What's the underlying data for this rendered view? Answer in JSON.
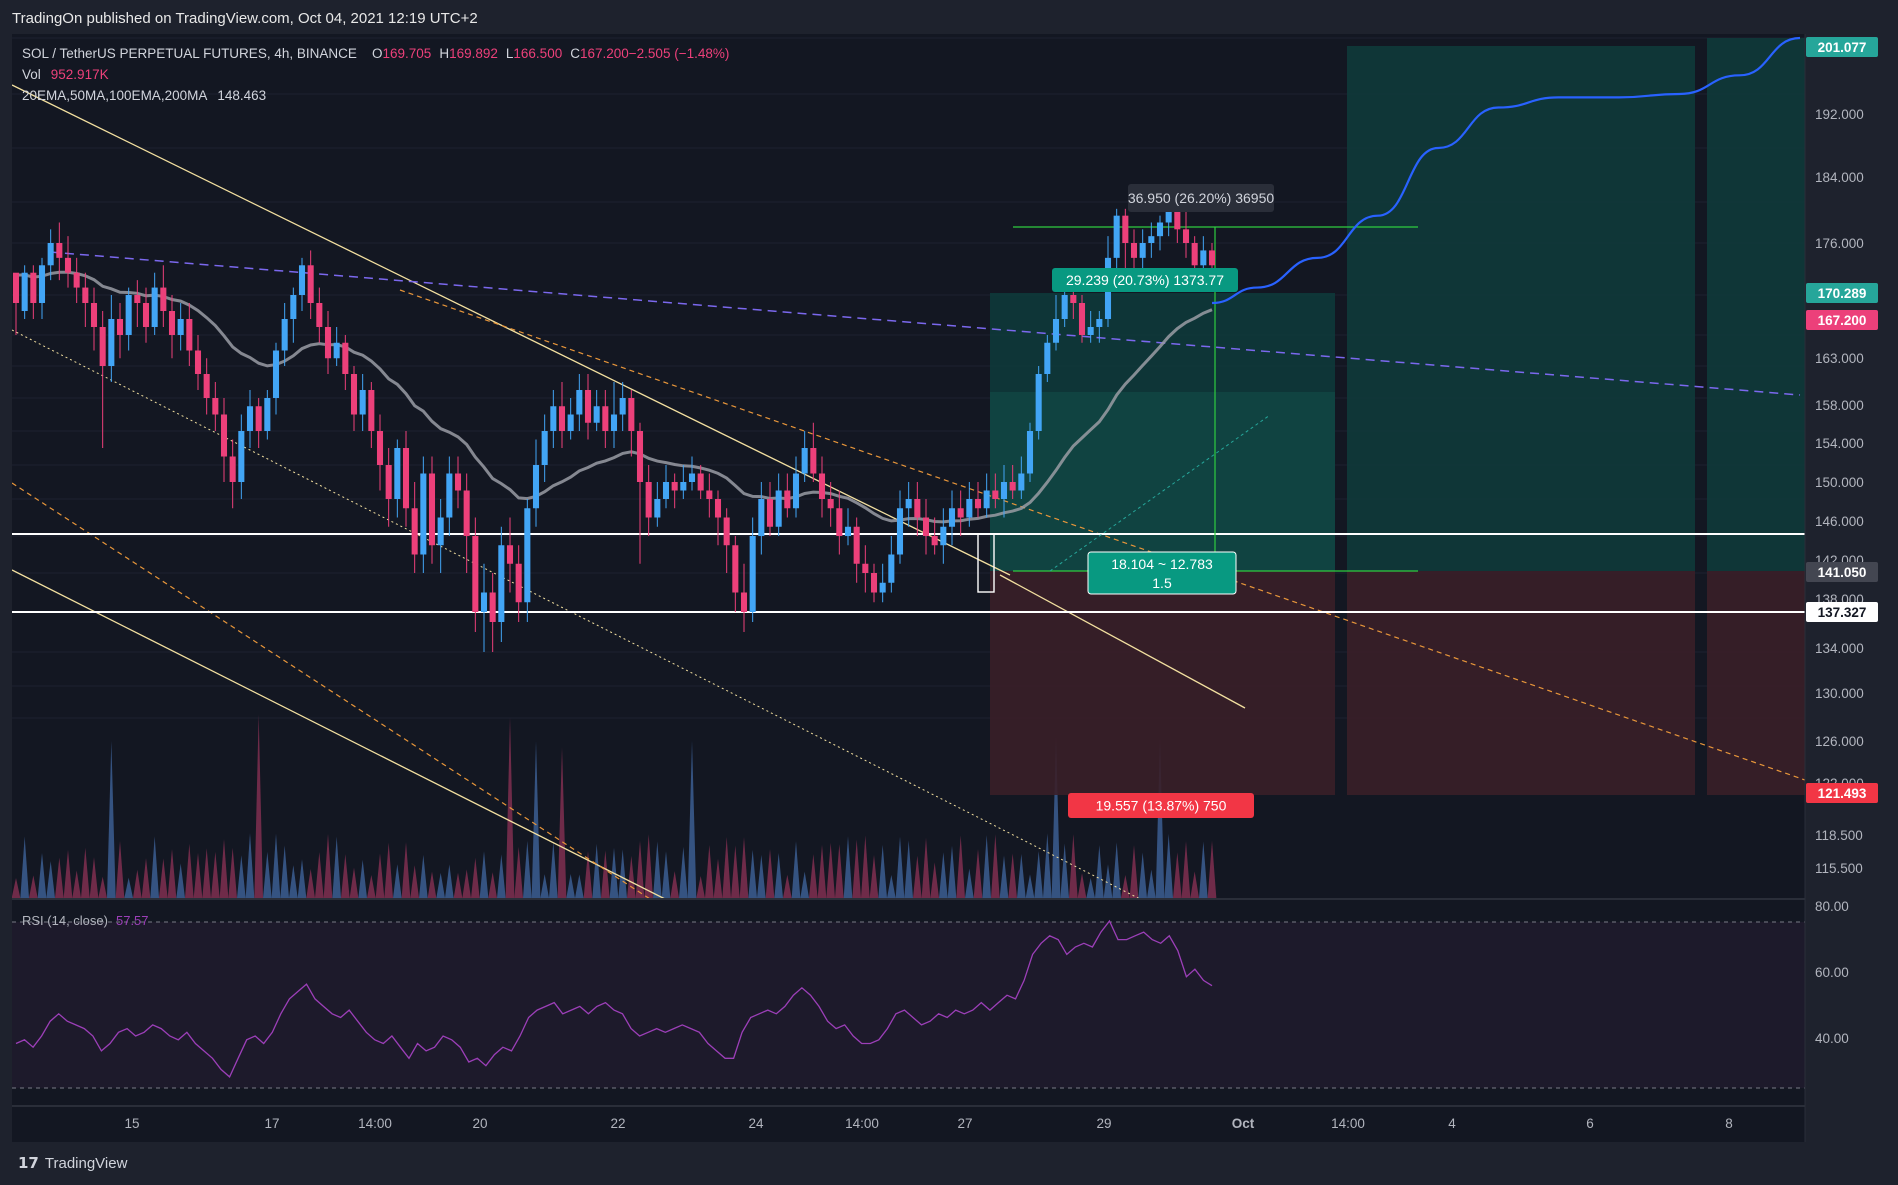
{
  "header": {
    "published": "TradingOn published on TradingView.com, Oct 04, 2021 12:19 UTC+2"
  },
  "legend": {
    "symbol": "SOL / TetherUS PERPETUAL FUTURES, 4h, BINANCE",
    "ohlc": [
      {
        "label": "O",
        "value": "169.705"
      },
      {
        "label": "H",
        "value": "169.892"
      },
      {
        "label": "L",
        "value": "166.500"
      },
      {
        "label": "C",
        "value": "167.200"
      },
      {
        "label": "",
        "value": "−2.505 (−1.48%)"
      }
    ],
    "vol_label": "Vol",
    "vol_value": "952.917K",
    "ma_label": "20EMA,50MA,100EMA,200MA",
    "ma_value": "148.463"
  },
  "brand": {
    "name": "TradingView"
  },
  "colors": {
    "up": "#42a5f5",
    "down": "#ec407a",
    "bg": "#131722",
    "grid": "#1e222d",
    "ma": "#9a9ca5",
    "forecast": "#2962ff",
    "rsi": "#9c3fb8",
    "target": "#26a69a",
    "stop": "#f23645"
  },
  "chart_data": {
    "type": "candlestick",
    "symbol": "SOL / TetherUS PERPETUAL FUTURES",
    "timeframe": "4h",
    "exchange": "BINANCE",
    "price_axis": {
      "ticks": [
        "200.000",
        "192.000",
        "184.000",
        "176.000",
        "170.000",
        "163.000",
        "158.000",
        "154.000",
        "150.000",
        "146.000",
        "142.000",
        "138.000",
        "134.000",
        "130.000",
        "126.000",
        "122.000",
        "118.500",
        "115.500"
      ],
      "badges": [
        {
          "value": "201.077",
          "color": "#26a69a"
        },
        {
          "value": "170.289",
          "color": "#26a69a"
        },
        {
          "value": "167.200",
          "color": "#ec407a"
        },
        {
          "value": "141.050",
          "color": "#434651"
        },
        {
          "value": "137.327",
          "color": "#ffffff"
        },
        {
          "value": "121.493",
          "color": "#f23645"
        }
      ]
    },
    "time_axis": [
      "15",
      "17",
      "14:00",
      "20",
      "22",
      "24",
      "14:00",
      "27",
      "29",
      "Oct",
      "14:00",
      "4",
      "6",
      "8"
    ],
    "candles": [
      [
        166,
        162,
        165,
        158
      ],
      [
        161,
        166,
        167,
        160
      ],
      [
        166,
        162,
        167,
        160
      ],
      [
        162,
        167,
        168,
        160
      ],
      [
        167,
        170,
        172,
        165
      ],
      [
        170,
        168,
        173,
        165
      ],
      [
        168,
        166,
        171,
        164
      ],
      [
        166,
        164,
        168,
        162
      ],
      [
        164,
        162,
        166,
        159
      ],
      [
        162,
        159,
        164,
        156
      ],
      [
        159,
        154,
        161,
        144
      ],
      [
        154,
        160,
        163,
        152
      ],
      [
        160,
        158,
        162,
        155
      ],
      [
        158,
        163,
        164,
        156
      ],
      [
        163,
        162,
        165,
        159
      ],
      [
        162,
        159,
        164,
        157
      ],
      [
        159,
        164,
        166,
        158
      ],
      [
        164,
        161,
        167,
        159
      ],
      [
        161,
        158,
        163,
        155
      ],
      [
        158,
        160,
        162,
        156
      ],
      [
        160,
        156,
        162,
        154
      ],
      [
        156,
        153,
        158,
        151
      ],
      [
        153,
        150,
        155,
        148
      ],
      [
        150,
        148,
        152,
        146
      ],
      [
        148,
        143,
        150,
        140
      ],
      [
        143,
        140,
        145,
        137
      ],
      [
        140,
        146,
        148,
        138
      ],
      [
        146,
        149,
        151,
        144
      ],
      [
        149,
        146,
        150,
        144
      ],
      [
        146,
        150,
        151,
        145
      ],
      [
        150,
        156,
        157,
        148
      ],
      [
        156,
        160,
        162,
        154
      ],
      [
        160,
        163,
        164,
        157
      ],
      [
        163,
        167,
        168,
        161
      ],
      [
        167,
        162,
        169,
        160
      ],
      [
        162,
        159,
        164,
        157
      ],
      [
        159,
        155,
        161,
        153
      ],
      [
        155,
        157,
        159,
        154
      ],
      [
        157,
        153,
        158,
        151
      ],
      [
        153,
        148,
        154,
        146
      ],
      [
        148,
        151,
        153,
        146
      ],
      [
        151,
        146,
        152,
        144
      ],
      [
        146,
        142,
        148,
        139
      ],
      [
        142,
        138,
        144,
        135
      ],
      [
        138,
        144,
        145,
        136
      ],
      [
        144,
        137,
        146,
        135
      ],
      [
        137,
        132,
        140,
        130
      ],
      [
        132,
        141,
        143,
        130
      ],
      [
        141,
        133,
        143,
        131
      ],
      [
        133,
        136,
        138,
        130
      ],
      [
        136,
        141,
        143,
        134
      ],
      [
        141,
        139,
        143,
        137
      ],
      [
        139,
        134,
        141,
        130
      ],
      [
        134,
        126,
        136,
        124
      ],
      [
        126,
        128,
        131,
        122
      ],
      [
        128,
        125,
        130,
        122
      ],
      [
        125,
        133,
        135,
        123
      ],
      [
        133,
        131,
        136,
        128
      ],
      [
        131,
        127,
        133,
        125
      ],
      [
        127,
        137,
        138,
        125
      ],
      [
        137,
        142,
        145,
        135
      ],
      [
        142,
        146,
        148,
        140
      ],
      [
        146,
        149,
        151,
        144
      ],
      [
        149,
        146,
        152,
        144
      ],
      [
        146,
        148,
        150,
        145
      ],
      [
        148,
        151,
        153,
        146
      ],
      [
        151,
        147,
        153,
        145
      ],
      [
        147,
        149,
        151,
        146
      ],
      [
        149,
        146,
        151,
        144
      ],
      [
        146,
        148,
        152,
        144
      ],
      [
        148,
        150,
        152,
        146
      ],
      [
        150,
        146,
        151,
        143
      ],
      [
        146,
        140,
        147,
        131
      ],
      [
        140,
        136,
        142,
        134
      ],
      [
        136,
        138,
        140,
        135
      ],
      [
        138,
        140,
        142,
        137
      ],
      [
        140,
        139,
        141,
        137
      ],
      [
        139,
        140,
        142,
        138
      ],
      [
        140,
        141,
        143,
        139
      ],
      [
        141,
        139,
        142,
        138
      ],
      [
        139,
        138,
        141,
        136
      ],
      [
        138,
        136,
        139,
        133
      ],
      [
        136,
        133,
        137,
        130
      ],
      [
        133,
        128,
        134,
        126
      ],
      [
        128,
        126,
        131,
        124
      ],
      [
        126,
        134,
        136,
        125
      ],
      [
        134,
        138,
        140,
        132
      ],
      [
        138,
        135,
        140,
        134
      ],
      [
        135,
        139,
        141,
        134
      ],
      [
        139,
        137,
        141,
        136
      ],
      [
        137,
        141,
        143,
        136
      ],
      [
        141,
        144,
        146,
        140
      ],
      [
        144,
        141,
        147,
        140
      ],
      [
        141,
        138,
        143,
        136
      ],
      [
        138,
        137,
        140,
        135
      ],
      [
        137,
        134,
        139,
        132
      ],
      [
        134,
        135,
        137,
        133
      ],
      [
        135,
        131,
        136,
        129
      ],
      [
        131,
        130,
        133,
        128
      ],
      [
        130,
        128,
        131,
        127
      ],
      [
        128,
        129,
        131,
        127
      ],
      [
        129,
        132,
        134,
        128
      ],
      [
        132,
        137,
        139,
        131
      ],
      [
        137,
        138,
        140,
        135
      ],
      [
        138,
        136,
        140,
        134
      ],
      [
        136,
        134,
        138,
        132
      ],
      [
        134,
        133,
        136,
        132
      ],
      [
        133,
        135,
        137,
        131
      ],
      [
        135,
        137,
        139,
        133
      ],
      [
        137,
        136,
        139,
        134
      ],
      [
        136,
        138,
        140,
        135
      ],
      [
        138,
        137,
        140,
        136
      ],
      [
        137,
        139,
        141,
        136
      ],
      [
        139,
        138,
        141,
        137
      ],
      [
        138,
        140,
        142,
        136
      ],
      [
        140,
        139,
        142,
        138
      ],
      [
        139,
        141,
        143,
        138
      ],
      [
        141,
        146,
        147,
        140
      ],
      [
        146,
        153,
        154,
        145
      ],
      [
        153,
        157,
        158,
        152
      ],
      [
        157,
        160,
        163,
        156
      ],
      [
        160,
        163,
        164,
        159
      ],
      [
        163,
        162,
        165,
        160
      ],
      [
        162,
        158,
        163,
        157
      ],
      [
        158,
        159,
        161,
        157
      ],
      [
        159,
        160,
        161,
        157
      ],
      [
        160,
        168,
        171,
        159
      ],
      [
        168,
        174,
        175,
        166
      ],
      [
        174,
        170,
        175,
        166
      ],
      [
        170,
        168,
        172,
        165
      ],
      [
        168,
        170,
        172,
        166
      ],
      [
        170,
        171,
        173,
        168
      ],
      [
        171,
        173,
        174,
        169
      ],
      [
        173,
        175,
        176,
        171
      ],
      [
        175,
        172,
        177,
        170
      ],
      [
        172,
        170,
        175,
        168
      ],
      [
        170,
        167,
        171,
        166
      ],
      [
        167,
        169,
        171,
        166
      ],
      [
        169,
        167,
        170,
        166
      ]
    ],
    "forecast_path": [
      [
        155,
        162
      ],
      [
        158,
        164
      ],
      [
        162,
        168
      ],
      [
        166,
        174
      ],
      [
        170,
        184
      ],
      [
        174,
        190
      ],
      [
        178,
        191.5
      ],
      [
        182,
        191.5
      ],
      [
        186,
        192
      ],
      [
        190,
        195
      ],
      [
        194,
        201
      ]
    ],
    "rsi": {
      "label": "RSI (14, close)",
      "value": "57.57",
      "levels": [
        70,
        30
      ],
      "ticks": [
        "80.00",
        "60.00",
        "40.00"
      ],
      "values": [
        42,
        43,
        41,
        44,
        48,
        50,
        48,
        47,
        46,
        44,
        40,
        42,
        45,
        46,
        44,
        45,
        47,
        46,
        44,
        43,
        45,
        42,
        40,
        38,
        35,
        33,
        38,
        43,
        44,
        42,
        45,
        50,
        54,
        56,
        58,
        54,
        52,
        50,
        49,
        51,
        48,
        45,
        43,
        42,
        44,
        41,
        38,
        42,
        40,
        41,
        44,
        43,
        41,
        37,
        38,
        36,
        39,
        41,
        40,
        44,
        49,
        51,
        52,
        53,
        50,
        51,
        52,
        50,
        52,
        53,
        51,
        50,
        46,
        44,
        45,
        46,
        45,
        46,
        47,
        46,
        45,
        42,
        40,
        38,
        38,
        45,
        49,
        50,
        51,
        50,
        52,
        55,
        57,
        55,
        52,
        48,
        46,
        47,
        44,
        42,
        42,
        43,
        46,
        50,
        51,
        49,
        47,
        48,
        50,
        49,
        51,
        50,
        51,
        53,
        51,
        53,
        55,
        54,
        59,
        66,
        69,
        71,
        70,
        66,
        68,
        69,
        68,
        72,
        75,
        70,
        70,
        71,
        72,
        70,
        69,
        71,
        67,
        60,
        62,
        59,
        57.57
      ]
    },
    "annotations": [
      {
        "text": "36.950 (26.20%) 36950",
        "type": "measure"
      },
      {
        "text": "29.239 (20.73%) 1373.77",
        "type": "target"
      },
      {
        "text": "18.104 ~ 12.783",
        "type": "ratio"
      },
      {
        "text": "1.5",
        "type": "ratio"
      },
      {
        "text": "19.557 (13.87%) 750",
        "type": "stop"
      }
    ]
  }
}
